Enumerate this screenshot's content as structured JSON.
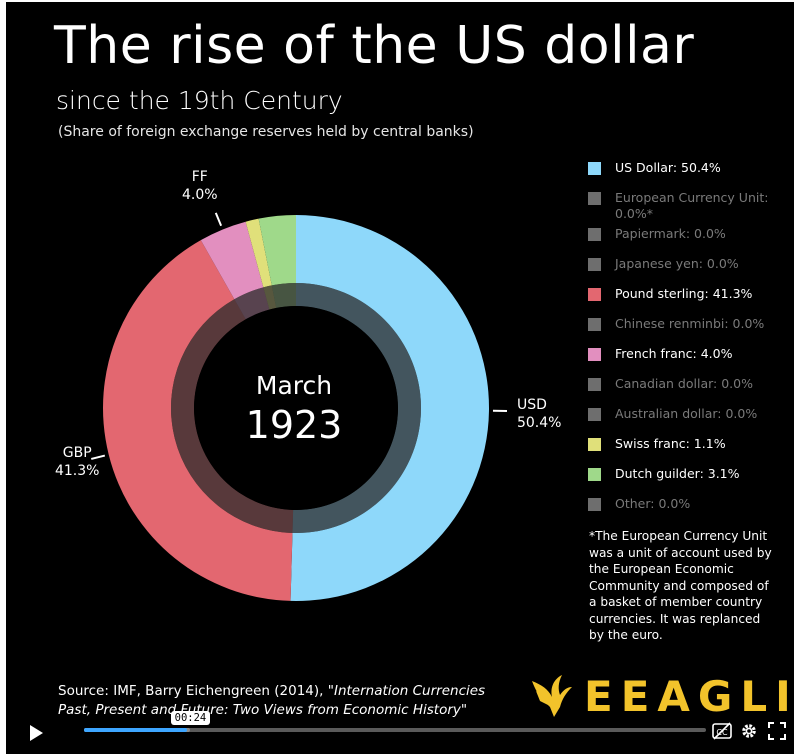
{
  "header": {
    "title": "The rise of the US dollar",
    "subtitle": "since the 19th Century",
    "note": "(Share of foreign exchange reserves held by central banks)"
  },
  "chart_data": {
    "type": "pie",
    "style": "donut",
    "center_label": {
      "month": "March",
      "year": "1923"
    },
    "slices": [
      {
        "name": "US Dollar",
        "short": "USD",
        "value": 50.4,
        "color": "#8ed8fa",
        "label_value": "50.4%"
      },
      {
        "name": "Pound sterling",
        "short": "GBP",
        "value": 41.3,
        "color": "#e36770",
        "label_value": "41.3%"
      },
      {
        "name": "French franc",
        "short": "FF",
        "value": 4.0,
        "color": "#e28fbf",
        "label_value": "4.0%"
      },
      {
        "name": "Swiss franc",
        "short": "",
        "value": 1.1,
        "color": "#e0e07a",
        "label_value": ""
      },
      {
        "name": "Dutch guilder",
        "short": "",
        "value": 3.1,
        "color": "#9fd98a",
        "label_value": ""
      }
    ],
    "legend_placement": "right"
  },
  "legend": [
    {
      "text": "US Dollar: 50.4%",
      "color": "#8ed8fa",
      "active": true
    },
    {
      "text": "European Currency Unit: 0.0%*",
      "color": "#6e6e6e",
      "active": false
    },
    {
      "text": "Papiermark: 0.0%",
      "color": "#6e6e6e",
      "active": false
    },
    {
      "text": "Japanese yen: 0.0%",
      "color": "#6e6e6e",
      "active": false
    },
    {
      "text": "Pound sterling: 41.3%",
      "color": "#e36770",
      "active": true
    },
    {
      "text": "Chinese renminbi: 0.0%",
      "color": "#6e6e6e",
      "active": false
    },
    {
      "text": "French franc: 4.0%",
      "color": "#e28fbf",
      "active": true
    },
    {
      "text": "Canadian dollar: 0.0%",
      "color": "#6e6e6e",
      "active": false
    },
    {
      "text": "Australian dollar: 0.0%",
      "color": "#6e6e6e",
      "active": false
    },
    {
      "text": "Swiss franc: 1.1%",
      "color": "#e0e07a",
      "active": true
    },
    {
      "text": "Dutch guilder: 3.1%",
      "color": "#9fd98a",
      "active": true
    },
    {
      "text": "Other: 0.0%",
      "color": "#6e6e6e",
      "active": false
    }
  ],
  "footnote": "*The European Currency Unit was a unit of account used by the European Economic Community and composed of a basket of member country currencies. It was replanced by the euro.",
  "source": {
    "prefix": "Source: IMF, Barry Eichengreen (2014), ",
    "title": "\"Internation Currencies Past, Present and Future: Two Views from Economic History\""
  },
  "logo": {
    "text": "EEAGLI",
    "color": "#f2c32b",
    "icon": "eagle-icon"
  },
  "player": {
    "current_time": "00:24",
    "progress": 0.165,
    "buffered": 0.17,
    "icons": [
      "play-icon",
      "captions-off-icon",
      "settings-icon",
      "fullscreen-icon"
    ]
  }
}
